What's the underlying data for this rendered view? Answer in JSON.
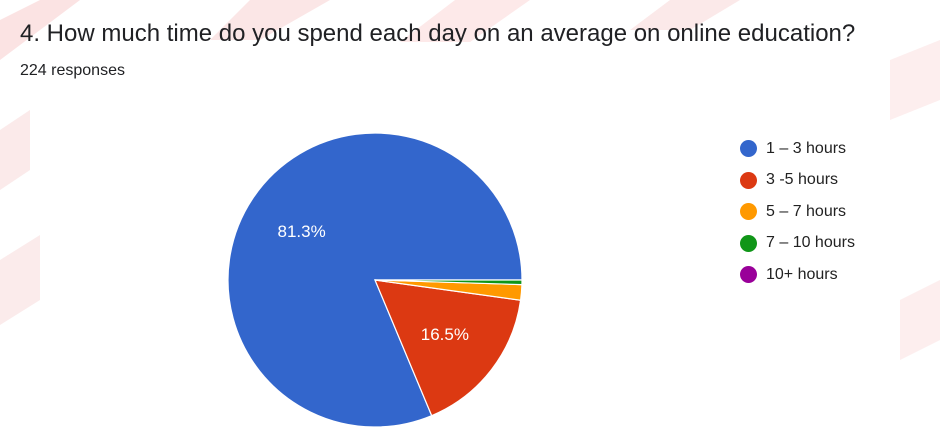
{
  "question": {
    "title": "4. How much time do you spend each day on an average on online education?",
    "response_count": "224 responses"
  },
  "chart_data": {
    "type": "pie",
    "title": "",
    "categories": [
      "1 – 3 hours",
      "3 -5 hours",
      "5 – 7 hours",
      "7 – 10 hours",
      "10+ hours"
    ],
    "values": [
      81.3,
      16.5,
      1.7,
      0.5,
      0
    ],
    "data_labels": [
      "81.3%",
      "16.5%",
      "",
      "",
      ""
    ],
    "colors": [
      "#3366cc",
      "#dc3912",
      "#ff9900",
      "#109618",
      "#990099"
    ],
    "start_angle": "right (3 o'clock), counter-clockwise",
    "legend_position": "right"
  }
}
